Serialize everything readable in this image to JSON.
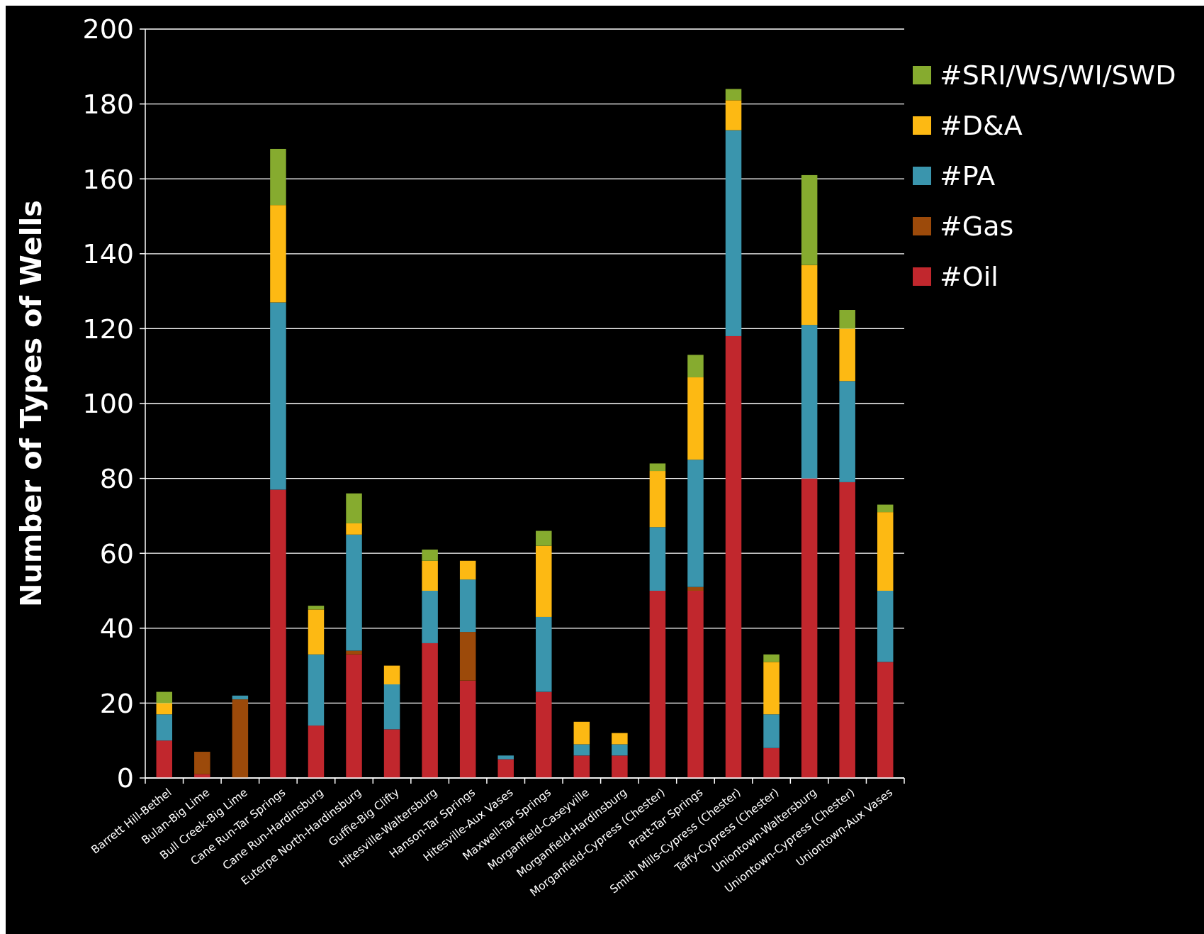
{
  "chart_data": {
    "type": "bar",
    "stacked": true,
    "ylabel": "Number of Types of Wells",
    "categories": [
      "Barrett Hill-Bethel",
      "Bulan-Big Lime",
      "Bull Creek-Big Lime",
      "Cane Run-Tar Springs",
      "Cane Run-Hardinsburg",
      "Euterpe North-Hardinsburg",
      "Guffie-Big Clifty",
      "Hitesville-Waltersburg",
      "Hanson-Tar Springs",
      "Hitesville-Aux Vases",
      "Maxwell-Tar Springs",
      "Morganfield-Caseyville",
      "Morganfield-Hardinsburg",
      "Morganfield-Cypress (Chester)",
      "Pratt-Tar Springs",
      "Smith Mills-Cypress (Chester)",
      "Taffy-Cypress (Chester)",
      "Uniontown-Waltersburg",
      "Uniontown-Cypress (Chester)",
      "Uniontown-Aux Vases"
    ],
    "series": [
      {
        "name": "#Oil",
        "color": "#c1272d",
        "values": [
          10,
          1,
          0,
          77,
          14,
          33,
          13,
          36,
          26,
          5,
          23,
          6,
          6,
          50,
          50,
          118,
          8,
          80,
          79,
          31
        ]
      },
      {
        "name": "#Gas",
        "color": "#9c4a0a",
        "values": [
          0,
          6,
          21,
          0,
          0,
          1,
          0,
          0,
          13,
          0,
          0,
          0,
          0,
          0,
          1,
          0,
          0,
          0,
          0,
          0
        ]
      },
      {
        "name": "#PA",
        "color": "#3a95ad",
        "values": [
          7,
          0,
          1,
          50,
          19,
          31,
          12,
          14,
          14,
          1,
          20,
          3,
          3,
          17,
          34,
          55,
          9,
          41,
          27,
          19
        ]
      },
      {
        "name": "#D&A",
        "color": "#fdb913",
        "values": [
          3,
          0,
          0,
          26,
          12,
          3,
          5,
          8,
          5,
          0,
          19,
          6,
          3,
          15,
          22,
          8,
          14,
          16,
          14,
          21
        ]
      },
      {
        "name": "#SRI/WS/WI/SWD",
        "color": "#86ab2f",
        "values": [
          3,
          0,
          0,
          15,
          1,
          8,
          0,
          3,
          0,
          0,
          4,
          0,
          0,
          2,
          6,
          3,
          2,
          24,
          5,
          2
        ]
      }
    ],
    "ylim": [
      0,
      200
    ],
    "yticks": [
      0,
      20,
      40,
      60,
      80,
      100,
      120,
      140,
      160,
      180,
      200
    ],
    "grid": "y",
    "legend": "top right"
  }
}
